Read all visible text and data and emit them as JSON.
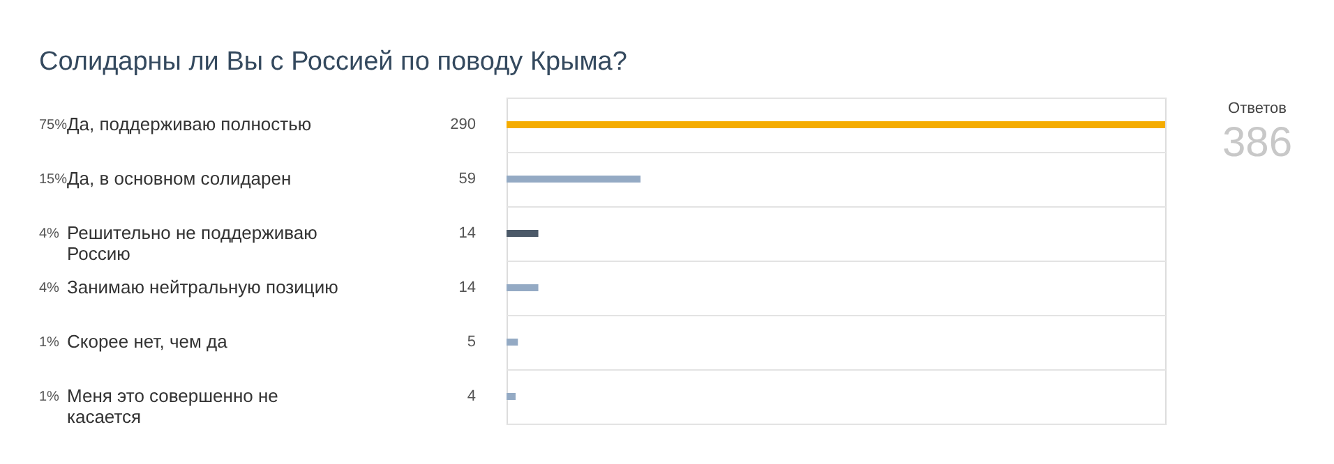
{
  "chart_data": {
    "type": "bar",
    "orientation": "horizontal",
    "title": "Солидарны ли Вы с Россией по поводу Крыма?",
    "categories": [
      "Да, поддерживаю полностью",
      "Да, в основном солидарен",
      "Решительно не поддерживаю Россию",
      "Занимаю нейтральную позицию",
      "Скорее нет, чем да",
      "Меня это совершенно не касается"
    ],
    "values": [
      290,
      59,
      14,
      14,
      5,
      4
    ],
    "colors": [
      "#f5ac00",
      "#94aac4",
      "#4b5968",
      "#94aac4",
      "#94aac4",
      "#94aac4"
    ],
    "data_labels": true,
    "grid": "y",
    "annotations": [
      "75%",
      "15%",
      "4%",
      "4%",
      "1%",
      "1%",
      "Ответов",
      "386"
    ]
  }
}
